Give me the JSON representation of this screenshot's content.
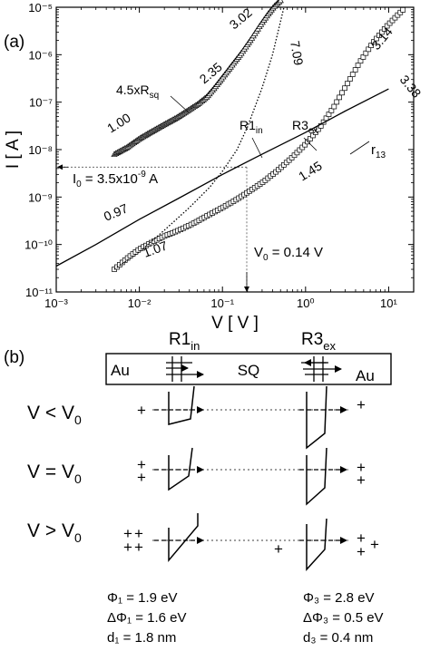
{
  "panel_a": {
    "label": "(a)",
    "chart_data": {
      "type": "scatter",
      "xlabel": "V [ V ]",
      "ylabel": "I [ A ]",
      "xscale": "log",
      "yscale": "log",
      "xlim": [
        0.001,
        20
      ],
      "ylim": [
        1e-11,
        1e-05
      ],
      "xticks": [
        "10⁻³",
        "10⁻²",
        "10⁻¹",
        "10⁰",
        "10¹"
      ],
      "yticks": [
        "10⁻¹¹",
        "10⁻¹⁰",
        "10⁻⁹",
        "10⁻⁸",
        "10⁻⁷",
        "10⁻⁶",
        "10⁻⁵"
      ],
      "series": [
        {
          "marker": "triangle",
          "x": [
            0.005,
            0.007,
            0.01,
            0.014,
            0.02,
            0.028,
            0.04,
            0.05,
            0.065,
            0.08,
            0.1,
            0.13,
            0.17,
            0.22,
            0.28,
            0.35,
            0.42,
            0.5
          ],
          "y": [
            8e-09,
            1.1e-08,
            1.7e-08,
            2.4e-08,
            3.4e-08,
            4.7e-08,
            7e-08,
            9e-08,
            1.3e-07,
            2e-07,
            3.3e-07,
            6e-07,
            1.1e-06,
            2.1e-06,
            4e-06,
            7e-06,
            1.05e-05,
            1.4e-05
          ]
        },
        {
          "marker": "square",
          "x": [
            0.005,
            0.007,
            0.01,
            0.014,
            0.02,
            0.03,
            0.045,
            0.065,
            0.1,
            0.15,
            0.22,
            0.3,
            0.45,
            0.7,
            1.0,
            1.5,
            2.2,
            3.2,
            4.5,
            6.5,
            9.5,
            13,
            16
          ],
          "y": [
            3e-11,
            5e-11,
            8e-11,
            1.1e-10,
            1.5e-10,
            2e-10,
            2.8e-10,
            4e-10,
            6e-10,
            9e-10,
            1.4e-09,
            2e-09,
            3.5e-09,
            7e-09,
            1.3e-08,
            3e-08,
            8e-08,
            2.5e-07,
            7e-07,
            1.8e-06,
            4e-06,
            7e-06,
            1e-05
          ]
        },
        {
          "line": "solid",
          "x": [
            0.001,
            0.003,
            0.01,
            0.03,
            0.1,
            0.3,
            1,
            3,
            10
          ],
          "y": [
            3.5e-11,
            1e-10,
            3.4e-10,
            9.5e-10,
            3e-09,
            8e-09,
            2.3e-08,
            6.5e-08,
            1.9e-07
          ]
        },
        {
          "line": "dotted",
          "x": [
            0.005,
            0.01,
            0.02,
            0.04,
            0.07,
            0.1,
            0.15,
            0.2,
            0.3,
            0.4,
            0.5,
            0.55
          ],
          "y": [
            3e-11,
            7e-11,
            2e-10,
            6e-10,
            1.6e-09,
            3.5e-09,
            1e-08,
            3e-08,
            2e-07,
            1e-06,
            5e-06,
            1e-05
          ]
        }
      ],
      "annotations": [
        "3.02",
        "2.35",
        "1.00",
        "4.5xR",
        "sq",
        "7.09",
        "R1",
        "in",
        "R3",
        "ex",
        "3.14",
        "3.38",
        "r",
        "13",
        "0.97",
        "1.45",
        "1.07"
      ],
      "crossing": {
        "v0": 0.14,
        "i0": 3.5e-09
      },
      "i0_label": {
        "main": "I",
        "sub": "0",
        "rest": " = 3.5x10",
        "exp": "-9",
        "unit": " A"
      },
      "v0_label": {
        "main": "V",
        "sub": "0",
        "rest": " = 0.14 V"
      }
    }
  },
  "panel_b": {
    "label": "(b)",
    "r1_label": {
      "main": "R1",
      "sub": "in"
    },
    "r3_label": {
      "main": "R3",
      "sub": "ex"
    },
    "electrode_left": "Au",
    "center": "SQ",
    "electrode_right": "Au",
    "rows": [
      {
        "main": "V < V",
        "sub": "0"
      },
      {
        "main": "V = V",
        "sub": "0"
      },
      {
        "main": "V > V",
        "sub": "0"
      }
    ],
    "charge": "+",
    "left_params": {
      "phi": "Φ₁ = 1.9 eV",
      "dphi": "ΔΦ₁ = 1.6 eV",
      "d": "d₁ = 1.8 nm"
    },
    "right_params": {
      "phi": "Φ₃ = 2.8 eV",
      "dphi": "ΔΦ₃ = 0.5 eV",
      "d": "d₃ = 0.4 nm"
    }
  }
}
